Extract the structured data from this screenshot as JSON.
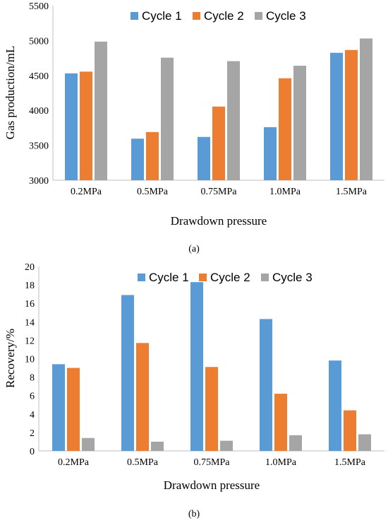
{
  "chart_data": [
    {
      "type": "bar",
      "panel_label": "(a)",
      "title": "",
      "xlabel": "Drawdown pressure",
      "ylabel": "Gas production/mL",
      "ylim": [
        3000,
        5500
      ],
      "yticks": [
        3000,
        3500,
        4000,
        4500,
        5000,
        5500
      ],
      "categories": [
        "0.2MPa",
        "0.5MPa",
        "0.75MPa",
        "1.0MPa",
        "1.5MPa"
      ],
      "grid": false,
      "legend_position": "top",
      "series": [
        {
          "name": "Cycle 1",
          "color": "#5b9bd5",
          "values": [
            4530,
            3595,
            3620,
            3760,
            4825
          ]
        },
        {
          "name": "Cycle 2",
          "color": "#ed7d31",
          "values": [
            4555,
            3690,
            4055,
            4460,
            4865
          ]
        },
        {
          "name": "Cycle 3",
          "color": "#a5a5a5",
          "values": [
            4985,
            4755,
            4705,
            4640,
            5030
          ]
        }
      ]
    },
    {
      "type": "bar",
      "panel_label": "(b)",
      "title": "",
      "xlabel": "Drawdown pressure",
      "ylabel": "Recovery/%",
      "ylim": [
        0,
        20
      ],
      "yticks": [
        0,
        2,
        4,
        6,
        8,
        10,
        12,
        14,
        16,
        18,
        20
      ],
      "categories": [
        "0.2MPa",
        "0.5MPa",
        "0.75MPa",
        "1.0MPa",
        "1.5MPa"
      ],
      "grid": false,
      "legend_position": "top-right",
      "series": [
        {
          "name": "Cycle 1",
          "color": "#5b9bd5",
          "values": [
            9.4,
            16.9,
            18.3,
            14.3,
            9.8
          ]
        },
        {
          "name": "Cycle 2",
          "color": "#ed7d31",
          "values": [
            9.0,
            11.7,
            9.1,
            6.2,
            4.4
          ]
        },
        {
          "name": "Cycle 3",
          "color": "#a5a5a5",
          "values": [
            1.4,
            1.0,
            1.1,
            1.7,
            1.8
          ]
        }
      ]
    }
  ]
}
